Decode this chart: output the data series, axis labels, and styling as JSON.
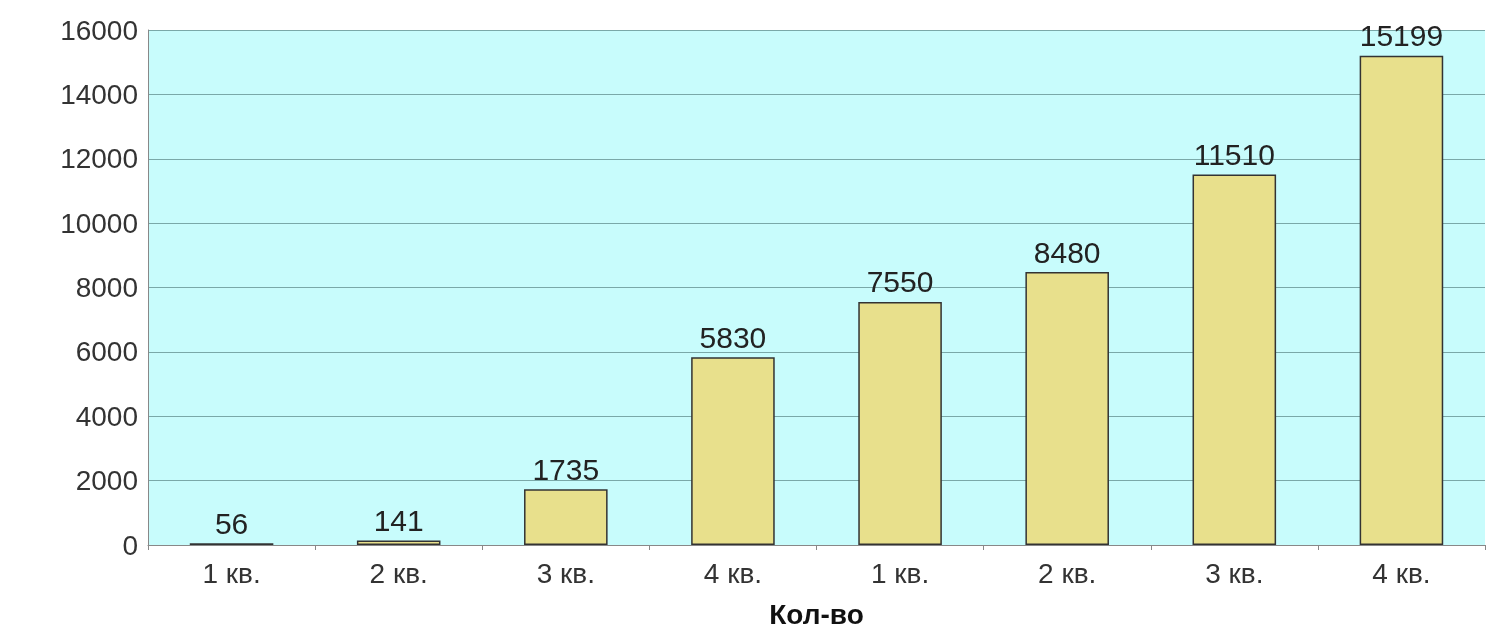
{
  "chart_data": {
    "type": "bar",
    "xlabel": "Кол-во",
    "categories": [
      "1 кв.",
      "2 кв.",
      "3 кв.",
      "4 кв.",
      "1 кв.",
      "2 кв.",
      "3 кв.",
      "4 кв."
    ],
    "values": [
      56,
      141,
      1735,
      5830,
      7550,
      8480,
      11510,
      15199
    ],
    "color": "#e8e08c",
    "ylim": [
      0,
      16000
    ],
    "yticks": [
      0,
      2000,
      4000,
      6000,
      8000,
      10000,
      12000,
      14000,
      16000
    ],
    "grid": "y",
    "data_labels": true
  }
}
